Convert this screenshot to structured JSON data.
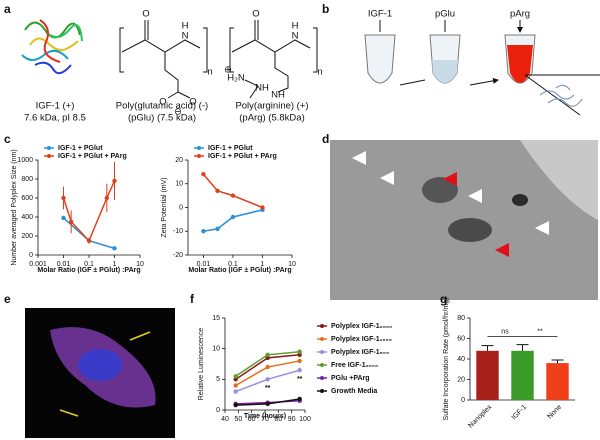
{
  "panel_labels": [
    "a",
    "b",
    "c",
    "d",
    "e",
    "f",
    "g"
  ],
  "a": {
    "molecules": [
      {
        "caption": [
          "IGF-1 (+)",
          "7.6 kDa, pI 8.5"
        ]
      },
      {
        "atoms": [
          "O",
          "H",
          "N",
          "n",
          "O",
          "O",
          "⊖"
        ],
        "caption": [
          "Poly(glutamic acid) (-)",
          "(pGlu) (7.5 kDa)"
        ]
      },
      {
        "atoms": [
          "O",
          "H",
          "N",
          "n",
          "H₂N",
          "NH",
          "NH",
          "⊕"
        ],
        "caption": [
          "Poly(arginine) (+)",
          "(pArg) (5.8kDa)"
        ]
      }
    ]
  },
  "b": {
    "labels": [
      "IGF-1",
      "pGlu",
      "pArg"
    ]
  },
  "chart_data": [
    {
      "type": "line",
      "ylabel": "Number averaged Polyplex Size (nm)",
      "xlabel": "Molar Ratio (IGF ± PGlut) :PArg",
      "xlog": true,
      "xlim": [
        0.001,
        10
      ],
      "xticks": [
        0.001,
        0.01,
        0.1,
        1,
        10
      ],
      "ylim": [
        0,
        1000
      ],
      "yticks": [
        0,
        200,
        400,
        600,
        800,
        1000
      ],
      "legend": "upper left",
      "series": [
        {
          "name": "IGF-1 + PGlut",
          "color": "#2a8fd8",
          "x": [
            0.01,
            0.1,
            1
          ],
          "values": [
            390,
            150,
            70
          ]
        },
        {
          "name": "IGF-1 + PGlut + PArg",
          "color": "#e0401a",
          "x": [
            0.01,
            0.02,
            0.1,
            0.5,
            1
          ],
          "values": [
            600,
            350,
            150,
            600,
            780
          ],
          "errors": [
            120,
            120,
            30,
            150,
            200
          ]
        }
      ]
    },
    {
      "type": "line",
      "ylabel": "Zeta Potential (mV)",
      "xlabel": "Molar Ratio (IGF ± PGlut) :PArg",
      "xlog": true,
      "xlim": [
        0.003,
        10
      ],
      "xticks": [
        0.01,
        0.1,
        1,
        10
      ],
      "ylim": [
        -20,
        20
      ],
      "yticks": [
        -20,
        -10,
        0,
        10,
        20
      ],
      "legend": "upper left",
      "series": [
        {
          "name": "IGF-1 + PGlut",
          "color": "#2a8fd8",
          "x": [
            0.01,
            0.03,
            0.1,
            1
          ],
          "values": [
            -10,
            -9,
            -4,
            -1
          ]
        },
        {
          "name": "IGF-1 + PGlut + PArg",
          "color": "#e0401a",
          "x": [
            0.01,
            0.03,
            0.1,
            1
          ],
          "values": [
            14,
            7,
            5,
            0
          ]
        }
      ]
    },
    {
      "type": "line",
      "ylabel": "Relative Luminescence",
      "xlabel": "Time (hours)",
      "xlim": [
        40,
        100
      ],
      "xticks": [
        40,
        50,
        60,
        70,
        80,
        90,
        100
      ],
      "ylim": [
        0,
        15
      ],
      "yticks": [
        0,
        5,
        10,
        15
      ],
      "legend": "right",
      "x": [
        48,
        72,
        96
      ],
      "annotations": [
        "**",
        "**"
      ],
      "series": [
        {
          "name": "Polyplex IGF-1₂₀₀₀",
          "color": "#8b1a1a",
          "values": [
            5,
            8.5,
            9
          ]
        },
        {
          "name": "Polyplex IGF-1₁₀₀₀",
          "color": "#e07020",
          "values": [
            4,
            7,
            8
          ]
        },
        {
          "name": "Polyplex IGF-1₅₀₀",
          "color": "#9b8fe0",
          "values": [
            3,
            5,
            6.5
          ]
        },
        {
          "name": "Free IGF-1₂₀₀₀",
          "color": "#5aa02c",
          "values": [
            5.5,
            9,
            9.5
          ]
        },
        {
          "name": "PGlu +PArg",
          "color": "#8020a0",
          "values": [
            1,
            1.2,
            1.5
          ]
        },
        {
          "name": "Growth Media",
          "color": "#111111",
          "values": [
            0.8,
            1,
            1.8
          ]
        }
      ]
    },
    {
      "type": "bar",
      "ylabel": "Sulfate Incorporation Rate (pmol/hr/mg)",
      "categories": [
        "Nanoplex",
        "IGF-1",
        "None"
      ],
      "values": [
        48,
        48,
        36
      ],
      "errors": [
        5,
        6,
        3
      ],
      "colors": [
        "#a8201a",
        "#3a9a2a",
        "#f0401a"
      ],
      "ylim": [
        0,
        80
      ],
      "yticks": [
        0,
        20,
        40,
        60,
        80
      ],
      "annotations": [
        "ns",
        "**"
      ]
    }
  ]
}
